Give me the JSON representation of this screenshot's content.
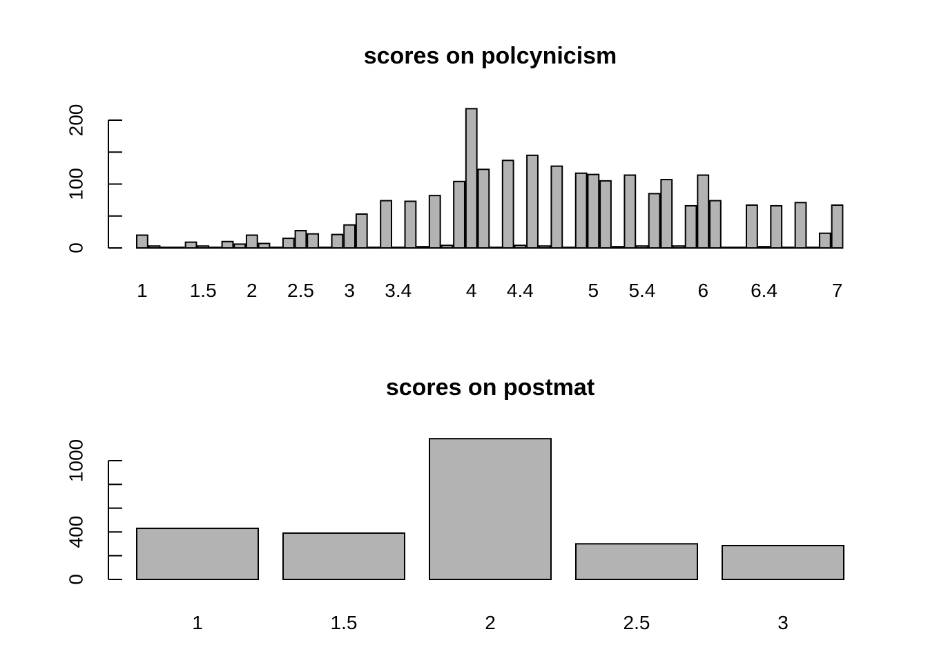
{
  "chart_data": [
    {
      "type": "bar",
      "title": "scores on polcynicism",
      "xlabel": "",
      "ylabel": "",
      "ylim": [
        0,
        220
      ],
      "y_ticks": [
        0,
        50,
        100,
        150,
        200
      ],
      "y_tick_labels": [
        "0",
        "",
        "100",
        "",
        "200"
      ],
      "x_tick_labels": [
        "1",
        "1.5",
        "2",
        "2.5",
        "3",
        "3.4",
        "4",
        "4.4",
        "5",
        "5.4",
        "6",
        "6.4",
        "7"
      ],
      "values": [
        20,
        3,
        1,
        1,
        9,
        3,
        1,
        10,
        6,
        20,
        7,
        1,
        15,
        27,
        22,
        1,
        21,
        36,
        53,
        1,
        74,
        1,
        73,
        2,
        82,
        4,
        104,
        218,
        123,
        1,
        137,
        4,
        145,
        3,
        128,
        1,
        117,
        115,
        105,
        2,
        114,
        3,
        85,
        107,
        3,
        66,
        114,
        74,
        1,
        1,
        67,
        2,
        66,
        1,
        71,
        1,
        23,
        67
      ],
      "bar_color": "#b3b3b3"
    },
    {
      "type": "bar",
      "title": "scores on postmat",
      "xlabel": "",
      "ylabel": "",
      "ylim": [
        0,
        1200
      ],
      "y_ticks": [
        0,
        200,
        400,
        600,
        800,
        1000
      ],
      "y_tick_labels": [
        "0",
        "",
        "400",
        "",
        "",
        "1000"
      ],
      "categories": [
        "1",
        "1.5",
        "2",
        "2.5",
        "3"
      ],
      "values": [
        430,
        390,
        1185,
        300,
        285
      ],
      "bar_color": "#b3b3b3"
    }
  ]
}
